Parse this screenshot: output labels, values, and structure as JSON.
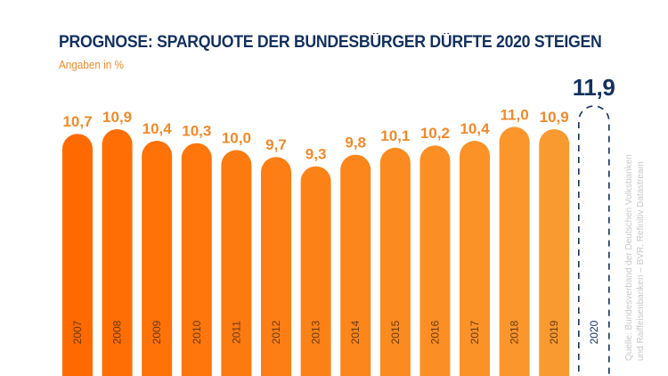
{
  "chart_data": {
    "type": "bar",
    "title": "PROGNOSE: SPARQUOTE DER BUNDESBÜRGER DÜRFTE 2020 STEIGEN",
    "subtitle": "Angaben in %",
    "xlabel": "",
    "ylabel": "",
    "categories": [
      "2007",
      "2008",
      "2009",
      "2010",
      "2011",
      "2012",
      "2013",
      "2014",
      "2015",
      "2016",
      "2017",
      "2018",
      "2019",
      "2020"
    ],
    "values": [
      10.7,
      10.9,
      10.4,
      10.3,
      10.0,
      9.7,
      9.3,
      9.8,
      10.1,
      10.2,
      10.4,
      11.0,
      10.9,
      11.9
    ],
    "value_labels": [
      "10,7",
      "10,9",
      "10,4",
      "10,3",
      "10,0",
      "9,7",
      "9,3",
      "9,8",
      "10,1",
      "10,2",
      "10,4",
      "11,0",
      "10,9",
      "11,9"
    ],
    "forecast": [
      false,
      false,
      false,
      false,
      false,
      false,
      false,
      false,
      false,
      false,
      false,
      false,
      false,
      true
    ],
    "grid": false,
    "legend": "none",
    "colors": {
      "bar_start": "#ff6a00",
      "bar_end": "#f99a30",
      "value_label": "#f08a2a",
      "year_label": "#6a3a10",
      "forecast": "#13315f",
      "title": "#13315f"
    }
  },
  "source": {
    "line1": "Quelle: Bundesverband der Deutschen Volksbanken",
    "line2": "und Raiffeisenbanken – BVR, Refinitiv Datastream"
  }
}
